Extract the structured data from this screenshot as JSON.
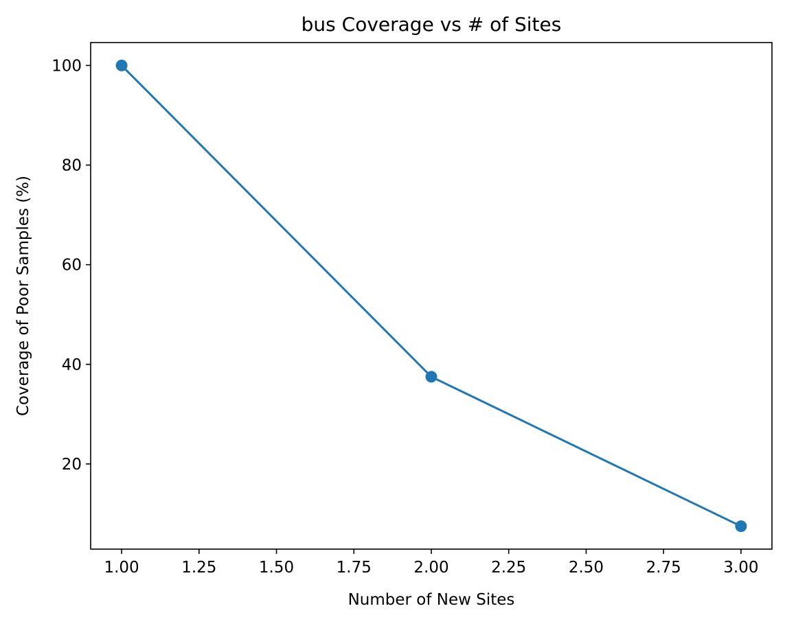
{
  "chart_data": {
    "type": "line",
    "title": "bus Coverage vs # of Sites",
    "xlabel": "Number of New Sites",
    "ylabel": "Coverage of Poor Samples (%)",
    "x": [
      1.0,
      2.0,
      3.0
    ],
    "series": [
      {
        "values": [
          100.0,
          37.5,
          7.5
        ],
        "color": "#1f77b4",
        "marker": "circle"
      }
    ],
    "xlim": [
      0.9,
      3.1
    ],
    "ylim": [
      2.9,
      104.6
    ],
    "xticks": [
      1.0,
      1.25,
      1.5,
      1.75,
      2.0,
      2.25,
      2.5,
      2.75,
      3.0
    ],
    "xtick_labels": [
      "1.00",
      "1.25",
      "1.50",
      "1.75",
      "2.00",
      "2.25",
      "2.50",
      "2.75",
      "3.00"
    ],
    "yticks": [
      20,
      40,
      60,
      80,
      100
    ],
    "ytick_labels": [
      "20",
      "40",
      "60",
      "80",
      "100"
    ],
    "grid": false,
    "legend": null
  }
}
